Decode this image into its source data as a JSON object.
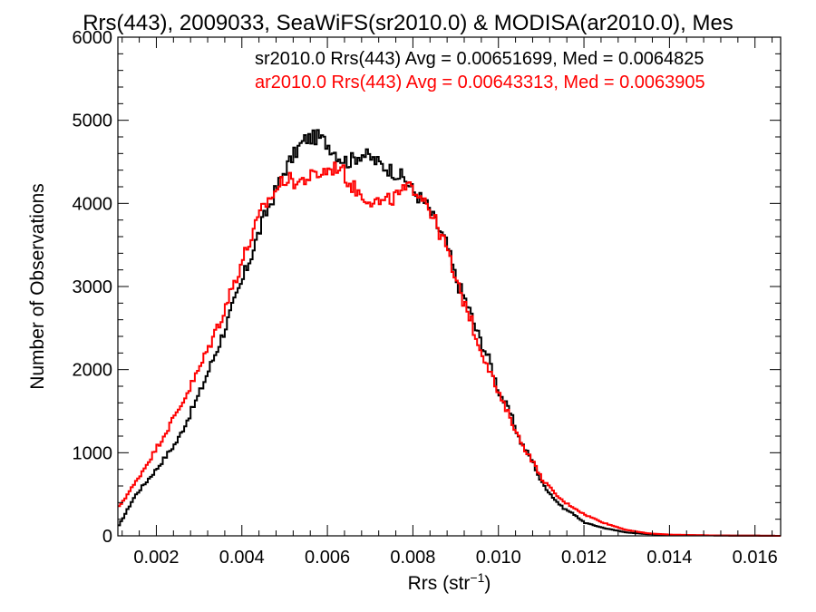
{
  "chart_data": {
    "type": "line",
    "title": "Rrs(443), 2009033, SeaWiFS(sr2010.0) & MODISA(ar2010.0), Mes",
    "xlabel": "Rrs (str",
    "xlabel_sup": "−1",
    "xlabel_close": ")",
    "ylabel": "Number of Observations",
    "xlim": [
      0.0011,
      0.0166
    ],
    "ylim": [
      0,
      6000
    ],
    "x_ticks": [
      0.002,
      0.004,
      0.006,
      0.008,
      0.01,
      0.012,
      0.014,
      0.016
    ],
    "x_tick_labels": [
      "0.002",
      "0.004",
      "0.006",
      "0.008",
      "0.010",
      "0.012",
      "0.014",
      "0.016"
    ],
    "y_ticks": [
      0,
      1000,
      2000,
      3000,
      4000,
      5000,
      6000
    ],
    "y_tick_labels": [
      "0",
      "1000",
      "2000",
      "3000",
      "4000",
      "5000",
      "6000"
    ],
    "legend_position": "top-right",
    "series": [
      {
        "name": "sr2010.0 Rrs(443) Avg = 0.00651699, Med = 0.0064825",
        "color": "#000000",
        "x": [
          0.0011,
          0.0015,
          0.002,
          0.0025,
          0.003,
          0.0035,
          0.004,
          0.0045,
          0.005,
          0.0053,
          0.0055,
          0.0058,
          0.006,
          0.0063,
          0.0065,
          0.0068,
          0.007,
          0.0073,
          0.0075,
          0.0078,
          0.008,
          0.0083,
          0.0085,
          0.0088,
          0.009,
          0.0093,
          0.0095,
          0.0098,
          0.01,
          0.0103,
          0.0105,
          0.0108,
          0.011,
          0.0113,
          0.0115,
          0.0118,
          0.012,
          0.0125,
          0.013,
          0.0135,
          0.014,
          0.015,
          0.0166
        ],
        "values": [
          100,
          480,
          800,
          1150,
          1700,
          2350,
          3050,
          3800,
          4400,
          4650,
          4780,
          4800,
          4720,
          4550,
          4500,
          4600,
          4550,
          4450,
          4400,
          4300,
          4150,
          4000,
          3800,
          3500,
          3100,
          2750,
          2450,
          2100,
          1750,
          1450,
          1150,
          900,
          650,
          450,
          340,
          250,
          160,
          90,
          40,
          20,
          10,
          5,
          0
        ]
      },
      {
        "name": "ar2010.0 Rrs(443) Avg = 0.00643313, Med = 0.0063905",
        "color": "#ff0000",
        "x": [
          0.0011,
          0.0015,
          0.002,
          0.0025,
          0.003,
          0.0035,
          0.004,
          0.0045,
          0.005,
          0.0053,
          0.0055,
          0.0058,
          0.006,
          0.0063,
          0.0065,
          0.0068,
          0.007,
          0.0073,
          0.0075,
          0.0078,
          0.008,
          0.0083,
          0.0085,
          0.0088,
          0.009,
          0.0093,
          0.0095,
          0.0098,
          0.01,
          0.0103,
          0.0105,
          0.0108,
          0.011,
          0.0113,
          0.0115,
          0.0118,
          0.012,
          0.0125,
          0.013,
          0.0135,
          0.014,
          0.015,
          0.0166
        ],
        "values": [
          330,
          630,
          1050,
          1500,
          2000,
          2600,
          3300,
          3950,
          4300,
          4250,
          4300,
          4350,
          4400,
          4450,
          4250,
          4100,
          4050,
          4000,
          4050,
          4150,
          4200,
          4050,
          3800,
          3450,
          3050,
          2700,
          2350,
          2000,
          1700,
          1400,
          1150,
          900,
          700,
          520,
          420,
          330,
          260,
          150,
          70,
          30,
          15,
          5,
          0
        ]
      }
    ]
  }
}
